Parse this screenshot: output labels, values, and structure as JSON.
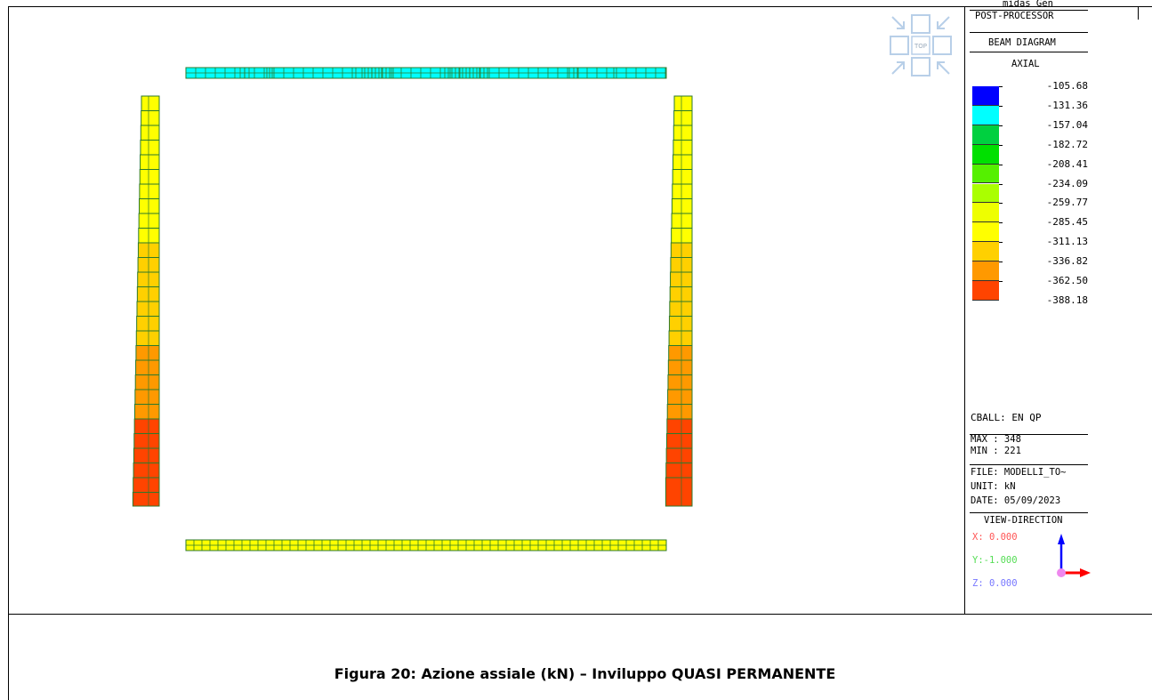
{
  "caption": "Figura 20: Azione assiale (kN) – Inviluppo QUASI PERMANENTE",
  "panel": {
    "app": "midas Gen",
    "mode": "POST-PROCESSOR",
    "diagram": "BEAM DIAGRAM",
    "component": "AXIAL",
    "load_case": "CBALL: EN QP",
    "max": "MAX : 348",
    "min": "MIN : 221",
    "file": "FILE: MODELLI_TO~",
    "unit": "UNIT: kN",
    "date": "DATE: 05/09/2023",
    "view_title": "VIEW-DIRECTION",
    "view_x": "X: 0.000",
    "view_y": "Y:-1.000",
    "view_z": "Z: 0.000",
    "view_colors": {
      "x": "#ff5555",
      "y": "#55dd55",
      "z": "#7777ff"
    }
  },
  "view_cube": {
    "label": "TOP"
  },
  "legend": {
    "labels": [
      "-105.68",
      "-131.36",
      "-157.04",
      "-182.72",
      "-208.41",
      "-234.09",
      "-259.77",
      "-285.45",
      "-311.13",
      "-336.82",
      "-362.50",
      "-388.18"
    ],
    "colors": [
      "#0000ff",
      "#00ffff",
      "#00d040",
      "#00e000",
      "#55f000",
      "#aaff00",
      "#eeff00",
      "#ffff00",
      "#ffd000",
      "#ff9900",
      "#ff4400"
    ]
  },
  "members": {
    "top_beam": {
      "color": "#00ffff"
    },
    "bottom_beam": {
      "color": "#ffff00"
    },
    "left_column": {
      "bands": [
        {
          "color": "#ffff00",
          "count": 10
        },
        {
          "color": "#ffd000",
          "count": 7
        },
        {
          "color": "#ff9900",
          "count": 5
        },
        {
          "color": "#ff4400",
          "count": 6
        }
      ]
    },
    "right_column": {
      "bands": [
        {
          "color": "#ffff00",
          "count": 10
        },
        {
          "color": "#ffd000",
          "count": 7
        },
        {
          "color": "#ff9900",
          "count": 5
        },
        {
          "color": "#ff4400",
          "count": 5
        }
      ]
    }
  }
}
